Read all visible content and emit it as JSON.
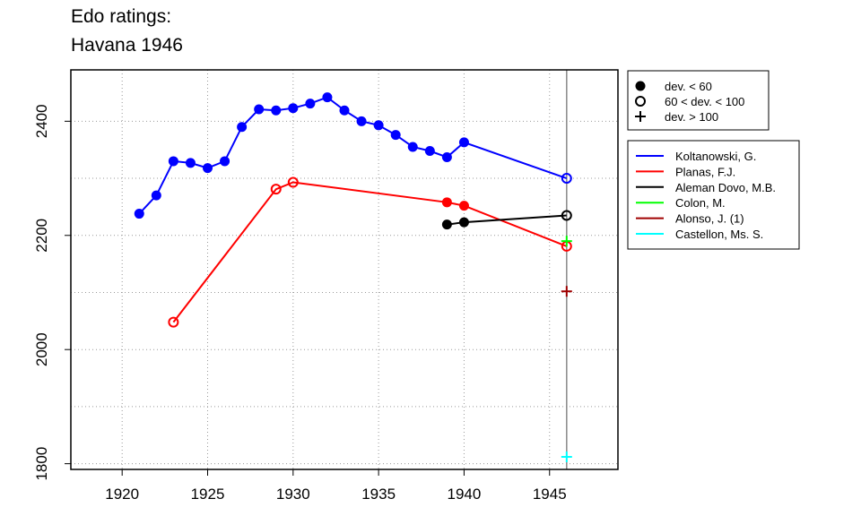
{
  "chart_data": {
    "type": "line",
    "title": [
      "Edo ratings:",
      "Havana 1946"
    ],
    "xlabel": "",
    "ylabel": "",
    "xlim": [
      1917,
      1949
    ],
    "ylim": [
      1790,
      2490
    ],
    "xticks": [
      1920,
      1925,
      1930,
      1935,
      1940,
      1945
    ],
    "yticks": [
      1800,
      2000,
      2200,
      2400
    ],
    "grid": true,
    "event_year": 1946,
    "symbol_legend": [
      {
        "symbol": "filled-circle",
        "label": "dev. < 60"
      },
      {
        "symbol": "open-circle",
        "label": "60 < dev. < 100"
      },
      {
        "symbol": "plus",
        "label": "dev. > 100"
      }
    ],
    "series": [
      {
        "name": "Koltanowski, G.",
        "color": "#0000ff",
        "points": [
          {
            "x": 1921,
            "y": 2238,
            "m": "filled"
          },
          {
            "x": 1922,
            "y": 2270,
            "m": "filled"
          },
          {
            "x": 1923,
            "y": 2330,
            "m": "filled"
          },
          {
            "x": 1924,
            "y": 2327,
            "m": "filled"
          },
          {
            "x": 1925,
            "y": 2318,
            "m": "filled"
          },
          {
            "x": 1926,
            "y": 2330,
            "m": "filled"
          },
          {
            "x": 1927,
            "y": 2390,
            "m": "filled"
          },
          {
            "x": 1928,
            "y": 2421,
            "m": "filled"
          },
          {
            "x": 1929,
            "y": 2419,
            "m": "filled"
          },
          {
            "x": 1930,
            "y": 2423,
            "m": "filled"
          },
          {
            "x": 1931,
            "y": 2431,
            "m": "filled"
          },
          {
            "x": 1932,
            "y": 2442,
            "m": "filled"
          },
          {
            "x": 1933,
            "y": 2419,
            "m": "filled"
          },
          {
            "x": 1934,
            "y": 2400,
            "m": "filled"
          },
          {
            "x": 1935,
            "y": 2393,
            "m": "filled"
          },
          {
            "x": 1936,
            "y": 2376,
            "m": "filled"
          },
          {
            "x": 1937,
            "y": 2355,
            "m": "filled"
          },
          {
            "x": 1938,
            "y": 2348,
            "m": "filled"
          },
          {
            "x": 1939,
            "y": 2337,
            "m": "filled"
          },
          {
            "x": 1940,
            "y": 2363,
            "m": "filled"
          },
          {
            "x": 1946,
            "y": 2300,
            "m": "open"
          }
        ]
      },
      {
        "name": "Planas, F.J.",
        "color": "#ff0000",
        "points": [
          {
            "x": 1923,
            "y": 2048,
            "m": "open"
          },
          {
            "x": 1929,
            "y": 2281,
            "m": "open"
          },
          {
            "x": 1930,
            "y": 2293,
            "m": "open"
          },
          {
            "x": 1939,
            "y": 2258,
            "m": "filled"
          },
          {
            "x": 1940,
            "y": 2252,
            "m": "filled"
          },
          {
            "x": 1946,
            "y": 2181,
            "m": "open"
          }
        ]
      },
      {
        "name": "Aleman Dovo, M.B.",
        "color": "#000000",
        "points": [
          {
            "x": 1939,
            "y": 2219,
            "m": "filled"
          },
          {
            "x": 1940,
            "y": 2223,
            "m": "filled"
          },
          {
            "x": 1946,
            "y": 2235,
            "m": "open"
          }
        ]
      },
      {
        "name": "Colon, M.",
        "color": "#00ff00",
        "points": [
          {
            "x": 1946,
            "y": 2190,
            "m": "plus"
          }
        ]
      },
      {
        "name": "Alonso, J. (1)",
        "color": "#a00000",
        "points": [
          {
            "x": 1946,
            "y": 2102,
            "m": "plus"
          }
        ]
      },
      {
        "name": "Castellon, Ms. S.",
        "color": "#00ffff",
        "points": [
          {
            "x": 1946,
            "y": 1812,
            "m": "plus"
          }
        ]
      }
    ]
  }
}
